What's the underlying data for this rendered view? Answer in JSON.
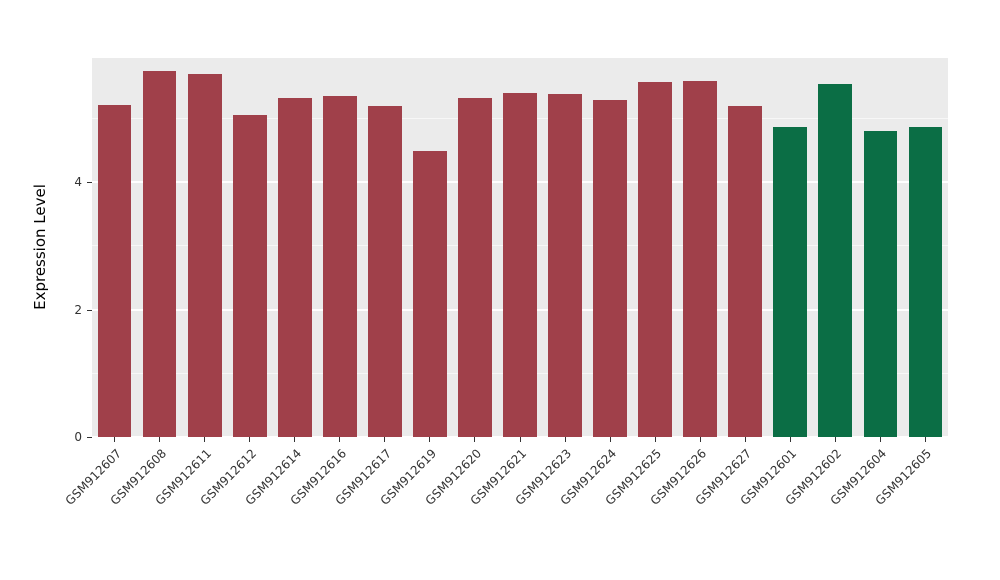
{
  "chart_data": {
    "type": "bar",
    "title": "",
    "xlabel": "",
    "ylabel": "Expression Level",
    "ylim": [
      0,
      5.95
    ],
    "yticks": [
      0,
      2,
      4
    ],
    "minor_gridlines": [
      1,
      3,
      5
    ],
    "grid": true,
    "legend_position": "none",
    "panel_background": "#EBEBEB",
    "grid_color": "#FFFFFF",
    "categories": [
      "GSM912607",
      "GSM912608",
      "GSM912611",
      "GSM912612",
      "GSM912614",
      "GSM912616",
      "GSM912617",
      "GSM912619",
      "GSM912620",
      "GSM912621",
      "GSM912623",
      "GSM912624",
      "GSM912625",
      "GSM912626",
      "GSM912627",
      "GSM912601",
      "GSM912602",
      "GSM912604",
      "GSM912605"
    ],
    "values": [
      5.22,
      5.75,
      5.7,
      5.05,
      5.33,
      5.35,
      5.19,
      4.49,
      5.33,
      5.4,
      5.38,
      5.29,
      5.57,
      5.59,
      5.19,
      4.87,
      5.54,
      4.81,
      4.87
    ],
    "groups": [
      "red",
      "red",
      "red",
      "red",
      "red",
      "red",
      "red",
      "red",
      "red",
      "red",
      "red",
      "red",
      "red",
      "red",
      "red",
      "green",
      "green",
      "green",
      "green"
    ],
    "group_colors": {
      "red": "#A0404A",
      "green": "#0B6E45"
    }
  }
}
